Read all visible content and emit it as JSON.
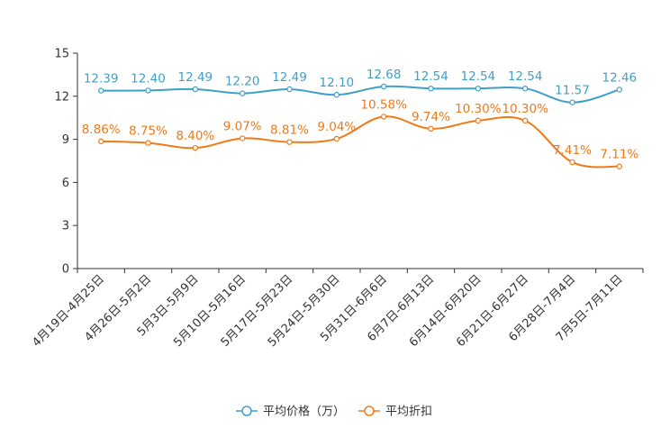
{
  "chart_data": {
    "type": "line",
    "categories": [
      "4月19日-4月25日",
      "4月26日-5月2日",
      "5月3日-5月9日",
      "5月10日-5月16日",
      "5月17日-5月23日",
      "5月24日-5月30日",
      "5月31日-6月6日",
      "6月7日-6月13日",
      "6月14日-6月20日",
      "6月21日-6月27日",
      "6月28日-7月4日",
      "7月5日-7月11日"
    ],
    "series": [
      {
        "name": "平均价格（万）",
        "color": "#3ea0c8",
        "values": [
          12.39,
          12.4,
          12.49,
          12.2,
          12.49,
          12.1,
          12.68,
          12.54,
          12.54,
          12.54,
          11.57,
          12.46
        ],
        "labels": [
          "12.39",
          "12.40",
          "12.49",
          "12.20",
          "12.49",
          "12.10",
          "12.68",
          "12.54",
          "12.54",
          "12.54",
          "11.57",
          "12.46"
        ]
      },
      {
        "name": "平均折扣",
        "color": "#f07a18",
        "values": [
          8.86,
          8.75,
          8.4,
          9.07,
          8.81,
          9.04,
          10.58,
          9.74,
          10.3,
          10.3,
          7.41,
          7.11
        ],
        "labels": [
          "8.86%",
          "8.75%",
          "8.40%",
          "9.07%",
          "8.81%",
          "9.04%",
          "10.58%",
          "9.74%",
          "10.30%",
          "10.30%",
          "7.41%",
          "7.11%"
        ]
      }
    ],
    "ylim": [
      0,
      15
    ],
    "yticks": [
      "0",
      "3",
      "6",
      "9",
      "12",
      "15"
    ],
    "xlabel": "",
    "ylabel": "",
    "title": "",
    "legend_position": "bottom-center"
  }
}
